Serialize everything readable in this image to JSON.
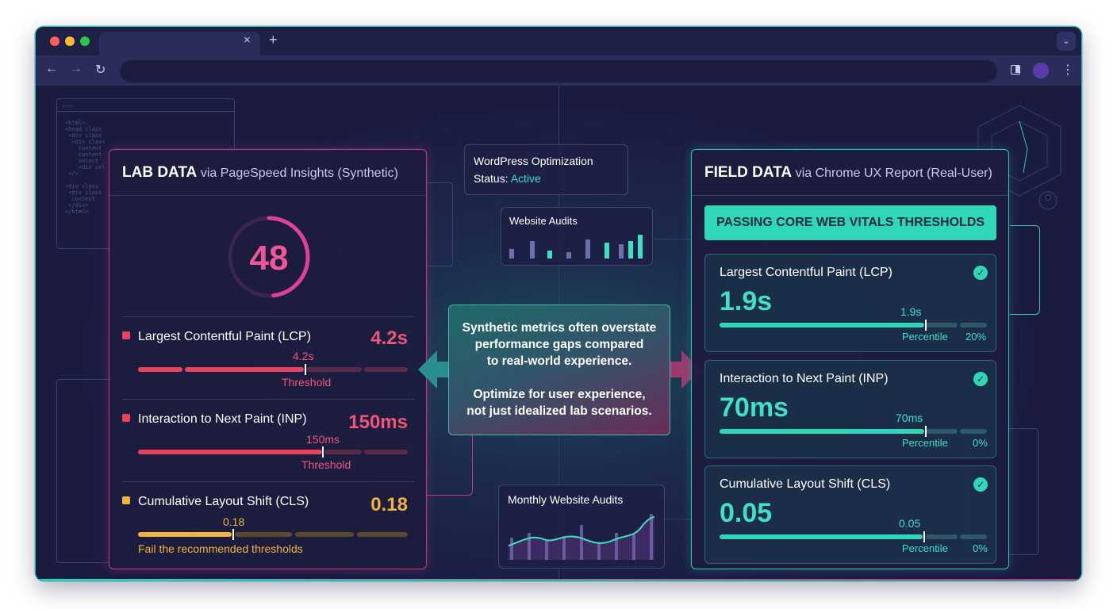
{
  "browser": {
    "tab": {
      "close_glyph": "×"
    },
    "new_tab_glyph": "+",
    "tab_menu_glyph": "⌄",
    "nav": {
      "back_glyph": "←",
      "forward_glyph": "→",
      "reload_glyph": "↻"
    },
    "menu_glyph": "⋮"
  },
  "lab": {
    "title": "LAB DATA",
    "subtitle": "via PageSpeed Insights (Synthetic)",
    "score": "48",
    "score_value": 48,
    "metrics": [
      {
        "label": "Largest Contentful Paint (LCP)",
        "value": "4.2s",
        "marker": "4.2s",
        "note": "Threshold",
        "color": "#e8425e"
      },
      {
        "label": "Interaction to Next Paint (INP)",
        "value": "150ms",
        "marker": "150ms",
        "note": "Threshold",
        "color": "#e8425e"
      },
      {
        "label": "Cumulative Layout Shift (CLS)",
        "value": "0.18",
        "marker": "0.18",
        "note": "Fail the recommended thresholds",
        "color": "#f2b33d"
      }
    ]
  },
  "middle": {
    "wp_line1": "WordPress Optimization",
    "wp_status_label": "Status:",
    "wp_status_value": "Active",
    "audits_title": "Website Audits",
    "callout_line1": "Synthetic metrics often overstate",
    "callout_line2": "performance gaps compared",
    "callout_line3": "to real-world experience.",
    "callout_line4": "Optimize for user experience,",
    "callout_line5": "not just idealized lab scenarios.",
    "monthly_title": "Monthly Website Audits"
  },
  "field": {
    "title": "FIELD DATA",
    "subtitle": "via Chrome UX Report (Real-User)",
    "banner": "PASSING CORE WEB VITALS THRESHOLDS",
    "metrics": [
      {
        "label": "Largest Contentful Paint (LCP)",
        "value": "1.9s",
        "marker": "1.9s",
        "note": "Percentile",
        "pct": "20%"
      },
      {
        "label": "Interaction to Next Paint (INP)",
        "value": "70ms",
        "marker": "70ms",
        "note": "Percentile",
        "pct": "0%"
      },
      {
        "label": "Cumulative Layout Shift (CLS)",
        "value": "0.05",
        "marker": "0.05",
        "note": "Percentile",
        "pct": "0%"
      }
    ]
  },
  "colors": {
    "lab_accent": "#c23a86",
    "field_accent": "#2bc7b3",
    "pass": "#2fd6b8",
    "fail": "#e8425e",
    "warn": "#f2b33d"
  }
}
